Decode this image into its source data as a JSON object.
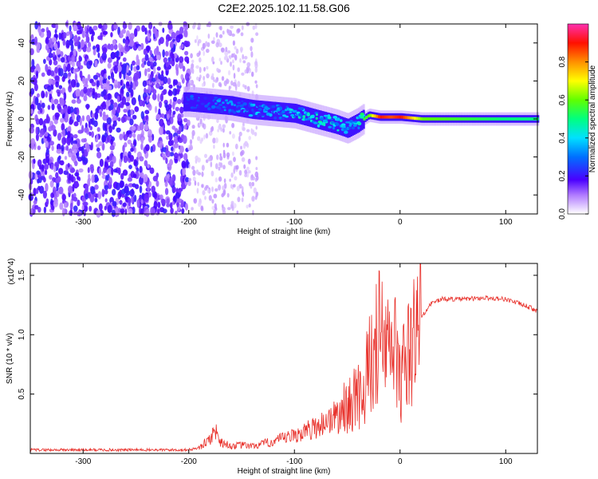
{
  "figure": {
    "title": "C2E2.2025.102.11.58.G06"
  },
  "chart_data": [
    {
      "type": "heatmap",
      "xlabel": "Height of straight line (km)",
      "ylabel": "Frequency (Hz)",
      "xlim": [
        -350,
        130
      ],
      "ylim": [
        -50,
        50
      ],
      "xticks": [
        -300,
        -200,
        -100,
        0,
        100
      ],
      "yticks": [
        -40,
        -20,
        0,
        20,
        40
      ],
      "colorbar": {
        "label": "Normalized spectral amplitude",
        "range": [
          0.0,
          1.0
        ],
        "ticks": [
          0.0,
          0.2,
          0.4,
          0.6,
          0.8
        ]
      },
      "ridge": {
        "x": [
          -200,
          -180,
          -160,
          -140,
          -120,
          -100,
          -80,
          -60,
          -50,
          -40,
          -30,
          -20,
          -10,
          0,
          20,
          60,
          100,
          130
        ],
        "frequency": [
          9,
          8,
          7,
          5,
          4,
          3,
          0,
          -3,
          -5,
          -2,
          2,
          1,
          1,
          1,
          0,
          0,
          0,
          0
        ],
        "amplitude": [
          0.3,
          0.35,
          0.35,
          0.4,
          0.4,
          0.45,
          0.5,
          0.45,
          0.4,
          0.5,
          0.6,
          0.9,
          0.85,
          0.9,
          0.6,
          0.55,
          0.5,
          0.5
        ]
      }
    },
    {
      "type": "line",
      "xlabel": "Height of straight line (km)",
      "ylabel": "SNR (10 * v/v)",
      "y_multiplier": "(x10^4)",
      "xlim": [
        -350,
        130
      ],
      "ylim": [
        0,
        1.6
      ],
      "xticks": [
        -300,
        -200,
        -100,
        0,
        100
      ],
      "yticks": [
        0.5,
        1.0,
        1.5
      ],
      "ytick_labels": [
        "0.5",
        "1.0",
        "1.5"
      ],
      "series": [
        {
          "color": "#e8302a",
          "x": [
            -350,
            -300,
            -250,
            -200,
            -190,
            -180,
            -175,
            -170,
            -160,
            -150,
            -140,
            -120,
            -100,
            -80,
            -60,
            -50,
            -40,
            -35,
            -30,
            -25,
            -20,
            -15,
            -10,
            -5,
            0,
            5,
            10,
            15,
            20,
            30,
            40,
            60,
            80,
            100,
            120,
            130
          ],
          "y": [
            0.03,
            0.03,
            0.03,
            0.03,
            0.05,
            0.12,
            0.2,
            0.1,
            0.06,
            0.07,
            0.06,
            0.1,
            0.15,
            0.22,
            0.32,
            0.4,
            0.48,
            0.55,
            0.7,
            0.85,
            1.0,
            0.9,
            0.85,
            0.9,
            0.6,
            0.75,
            0.85,
            1.0,
            1.15,
            1.27,
            1.3,
            1.3,
            1.31,
            1.3,
            1.24,
            1.2
          ]
        }
      ]
    }
  ]
}
